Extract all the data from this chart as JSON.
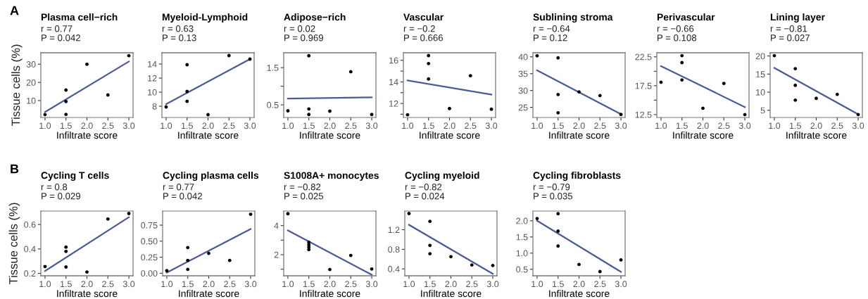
{
  "chart_data": [
    {
      "type": "scatter",
      "title": "Plasma cell−rich",
      "annotations": [
        "A",
        "r = 0.77",
        "P = 0.042"
      ],
      "xlabel": "Infiltrate score",
      "ylabel": "Tissue cells (%)",
      "xlim": [
        0.9,
        3.1
      ],
      "ylim": [
        0.7,
        36.3
      ],
      "xticks": [
        {
          "value": 1,
          "label": "1.0"
        },
        {
          "value": 1.5,
          "label": "1.5"
        },
        {
          "value": 2,
          "label": "2.0"
        },
        {
          "value": 2.5,
          "label": "2.5"
        },
        {
          "value": 3,
          "label": "3.0"
        }
      ],
      "yticks": [
        10,
        20,
        30
      ],
      "series": [
        {
          "marker": "circle",
          "color": "#000000",
          "x": [
            1,
            1.5,
            1.5,
            1.5,
            2,
            2.5,
            3
          ],
          "values": [
            2.3,
            15.8,
            9.5,
            2.4,
            30,
            13.1,
            34.7
          ]
        },
        {
          "type": "line",
          "marker": "none",
          "color": "#4a5a96",
          "x": [
            1,
            3
          ],
          "values": [
            3.7,
            31.5
          ]
        }
      ]
    },
    {
      "type": "scatter",
      "title": "Myeloid-Lymphoid",
      "annotations": [
        "r = 0.63",
        "P = 0.13"
      ],
      "xlabel": "Infiltrate score",
      "xlim": [
        0.9,
        3.1
      ],
      "ylim": [
        6.4,
        15.6
      ],
      "xticks": [
        {
          "value": 1,
          "label": "1.0"
        },
        {
          "value": 1.5,
          "label": "1.5"
        },
        {
          "value": 2,
          "label": "2.0"
        },
        {
          "value": 2.5,
          "label": "2.5"
        },
        {
          "value": 3,
          "label": "3.0"
        }
      ],
      "yticks": [
        8,
        10,
        12,
        14
      ],
      "series": [
        {
          "marker": "circle",
          "color": "#000000",
          "x": [
            1,
            1.5,
            1.5,
            1.5,
            2,
            2.5,
            3
          ],
          "values": [
            7.9,
            13.9,
            10.1,
            8.7,
            6.8,
            15.2,
            14.7
          ]
        },
        {
          "type": "line",
          "marker": "none",
          "color": "#4a5a96",
          "x": [
            1,
            3
          ],
          "values": [
            8.3,
            14.7
          ]
        }
      ]
    },
    {
      "type": "scatter",
      "title": "Adipose−rich",
      "annotations": [
        "r = 0.02",
        "P = 0.969"
      ],
      "xlabel": "Infiltrate score",
      "xlim": [
        0.9,
        3.1
      ],
      "ylim": [
        0.16,
        1.9
      ],
      "xticks": [
        {
          "value": 1,
          "label": "1.0"
        },
        {
          "value": 1.5,
          "label": "1.5"
        },
        {
          "value": 2,
          "label": "2.0"
        },
        {
          "value": 2.5,
          "label": "2.5"
        },
        {
          "value": 3,
          "label": "3.0"
        }
      ],
      "yticks": [
        {
          "value": 0.5,
          "label": "0.5"
        },
        {
          "value": 1.0,
          "label": null
        },
        {
          "value": 1.5,
          "label": "1.5"
        }
      ],
      "series": [
        {
          "marker": "circle",
          "color": "#000000",
          "x": [
            1,
            1.5,
            1.5,
            1.5,
            2,
            2.5,
            3
          ],
          "values": [
            0.34,
            1.82,
            0.39,
            0.24,
            0.33,
            1.39,
            0.24
          ]
        },
        {
          "type": "line",
          "marker": "none",
          "color": "#4a5a96",
          "x": [
            1,
            3
          ],
          "values": [
            0.67,
            0.7
          ]
        }
      ]
    },
    {
      "type": "scatter",
      "title": "Vascular",
      "annotations": [
        "r = −0.2",
        "P = 0.666"
      ],
      "xlabel": "Infiltrate score",
      "xlim": [
        0.9,
        3.1
      ],
      "ylim": [
        10.7,
        16.7
      ],
      "xticks": [
        {
          "value": 1,
          "label": "1.0"
        },
        {
          "value": 1.5,
          "label": "1.5"
        },
        {
          "value": 2,
          "label": "2.0"
        },
        {
          "value": 2.5,
          "label": "2.5"
        },
        {
          "value": 3,
          "label": "3.0"
        }
      ],
      "yticks": [
        {
          "value": 11,
          "label": null
        },
        {
          "value": 12,
          "label": "12"
        },
        {
          "value": 13,
          "label": null
        },
        {
          "value": 14,
          "label": "14"
        },
        {
          "value": 15,
          "label": null
        },
        {
          "value": 16,
          "label": "16"
        }
      ],
      "series": [
        {
          "marker": "circle",
          "color": "#000000",
          "x": [
            1,
            1.5,
            1.5,
            1.5,
            2,
            2.5,
            3
          ],
          "values": [
            10.95,
            16.44,
            15.7,
            14.27,
            11.53,
            14.57,
            11.47
          ]
        },
        {
          "type": "line",
          "marker": "none",
          "color": "#4a5a96",
          "x": [
            1,
            3
          ],
          "values": [
            14.13,
            12.82
          ]
        }
      ]
    },
    {
      "type": "scatter",
      "title": "Sublining stroma",
      "annotations": [
        "r = −0.64",
        "P = 0.12"
      ],
      "xlabel": "Infiltrate score",
      "xlim": [
        0.9,
        3.1
      ],
      "ylim": [
        22,
        41.2
      ],
      "xticks": [
        {
          "value": 1,
          "label": "1.0"
        },
        {
          "value": 1.5,
          "label": "1.5"
        },
        {
          "value": 2,
          "label": "2.0"
        },
        {
          "value": 2.5,
          "label": "2.5"
        },
        {
          "value": 3,
          "label": "3.0"
        }
      ],
      "yticks": [
        25,
        30,
        35,
        40
      ],
      "series": [
        {
          "marker": "circle",
          "color": "#000000",
          "x": [
            1,
            1.5,
            1.5,
            1.5,
            2,
            2.5,
            3
          ],
          "values": [
            40.3,
            39.7,
            28.8,
            23.4,
            29.6,
            28.5,
            22.9
          ]
        },
        {
          "type": "line",
          "marker": "none",
          "color": "#4a5a96",
          "x": [
            1,
            3
          ],
          "values": [
            36.0,
            23.0
          ]
        }
      ]
    },
    {
      "type": "scatter",
      "title": "Perivascular",
      "annotations": [
        "r = −0.66",
        "P = 0.108"
      ],
      "xlabel": "Infiltrate score",
      "xlim": [
        0.9,
        3.1
      ],
      "ylim": [
        12.0,
        23.2
      ],
      "xticks": [
        {
          "value": 1,
          "label": "1.0"
        },
        {
          "value": 1.5,
          "label": "1.5"
        },
        {
          "value": 2,
          "label": "2.0"
        },
        {
          "value": 2.5,
          "label": "2.5"
        },
        {
          "value": 3,
          "label": "3.0"
        }
      ],
      "yticks": [
        {
          "value": 12.5,
          "label": "12.5"
        },
        {
          "value": 15,
          "label": null
        },
        {
          "value": 17.5,
          "label": "17.5"
        },
        {
          "value": 20,
          "label": null
        },
        {
          "value": 22.5,
          "label": "22.5"
        }
      ],
      "series": [
        {
          "marker": "circle",
          "color": "#000000",
          "x": [
            1,
            1.5,
            1.5,
            1.5,
            2,
            2.5,
            3
          ],
          "values": [
            18.1,
            22.7,
            21.5,
            18.5,
            13.6,
            17.9,
            12.5
          ]
        },
        {
          "type": "line",
          "marker": "none",
          "color": "#4a5a96",
          "x": [
            1,
            3
          ],
          "values": [
            20.9,
            13.8
          ]
        }
      ]
    },
    {
      "type": "scatter",
      "title": "Lining layer",
      "annotations": [
        "r = −0.81",
        "P = 0.027"
      ],
      "xlabel": "Infiltrate score",
      "xlim": [
        0.9,
        3.1
      ],
      "ylim": [
        3.0,
        20.9
      ],
      "xticks": [
        {
          "value": 1,
          "label": "1.0"
        },
        {
          "value": 1.5,
          "label": "1.5"
        },
        {
          "value": 2,
          "label": "2.0"
        },
        {
          "value": 2.5,
          "label": "2.5"
        },
        {
          "value": 3,
          "label": "3.0"
        }
      ],
      "yticks": [
        5,
        10,
        15,
        20
      ],
      "series": [
        {
          "marker": "circle",
          "color": "#000000",
          "x": [
            1,
            1.5,
            1.5,
            1.5,
            2,
            2.5,
            3
          ],
          "values": [
            20.1,
            16.5,
            11.9,
            7.8,
            8.3,
            9.4,
            3.8
          ]
        },
        {
          "type": "line",
          "marker": "none",
          "color": "#4a5a96",
          "x": [
            1,
            3
          ],
          "values": [
            16.7,
            3.9
          ]
        }
      ]
    },
    {
      "type": "scatter",
      "title": "Cycling T cells",
      "annotations": [
        "B",
        "r = 0.8",
        "P = 0.029"
      ],
      "xlabel": "Infiltrate score",
      "ylabel": "Tissue cells (%)",
      "xlim": [
        0.9,
        3.1
      ],
      "ylim": [
        0.18,
        0.71
      ],
      "xticks": [
        {
          "value": 1,
          "label": "1.0"
        },
        {
          "value": 1.5,
          "label": "1.5"
        },
        {
          "value": 2,
          "label": "2.0"
        },
        {
          "value": 2.5,
          "label": "2.5"
        },
        {
          "value": 3,
          "label": "3.0"
        }
      ],
      "yticks": [
        0.2,
        0.4,
        0.6
      ],
      "series": [
        {
          "marker": "circle",
          "color": "#000000",
          "x": [
            1,
            1.5,
            1.5,
            1.5,
            2,
            2.5,
            3
          ],
          "values": [
            0.256,
            0.415,
            0.38,
            0.252,
            0.211,
            0.645,
            0.69
          ]
        },
        {
          "type": "line",
          "marker": "none",
          "color": "#4a5a96",
          "x": [
            1,
            3
          ],
          "values": [
            0.219,
            0.66
          ]
        }
      ]
    },
    {
      "type": "scatter",
      "title": "Cycling plasma cells",
      "annotations": [
        "r = 0.77",
        "P = 0.042"
      ],
      "xlabel": "Infiltrate score",
      "xlim": [
        0.9,
        3.1
      ],
      "ylim": [
        -0.04,
        0.97
      ],
      "xticks": [
        {
          "value": 1,
          "label": "1.0"
        },
        {
          "value": 1.5,
          "label": "1.5"
        },
        {
          "value": 2,
          "label": "2.0"
        },
        {
          "value": 2.5,
          "label": "2.5"
        },
        {
          "value": 3,
          "label": "3.0"
        }
      ],
      "yticks": [
        {
          "value": 0,
          "label": "0.00"
        },
        {
          "value": 0.25,
          "label": "0.25"
        },
        {
          "value": 0.5,
          "label": "0.50"
        },
        {
          "value": 0.75,
          "label": "0.75"
        }
      ],
      "series": [
        {
          "marker": "circle",
          "color": "#000000",
          "x": [
            1,
            1.5,
            1.5,
            1.5,
            2,
            2.5,
            3
          ],
          "values": [
            0.04,
            0.4,
            0.2,
            0.06,
            0.31,
            0.2,
            0.92
          ]
        },
        {
          "type": "line",
          "marker": "none",
          "color": "#4a5a96",
          "x": [
            1,
            3
          ],
          "values": [
            0.01,
            0.69
          ]
        }
      ]
    },
    {
      "type": "scatter",
      "title": "S1008A+ monocytes",
      "annotations": [
        "r = −0.82",
        "P = 0.025"
      ],
      "xlabel": "Infiltrate score",
      "xlim": [
        0.9,
        3.1
      ],
      "ylim": [
        0.55,
        5.0
      ],
      "xticks": [
        {
          "value": 1,
          "label": "1.0"
        },
        {
          "value": 1.5,
          "label": "1.5"
        },
        {
          "value": 2,
          "label": "2.0"
        },
        {
          "value": 2.5,
          "label": "2.5"
        },
        {
          "value": 3,
          "label": "3.0"
        }
      ],
      "yticks": [
        {
          "value": 1,
          "label": null
        },
        {
          "value": 2,
          "label": "2"
        },
        {
          "value": 3,
          "label": null
        },
        {
          "value": 4,
          "label": "4"
        }
      ],
      "series": [
        {
          "marker": "circle",
          "color": "#000000",
          "x": [
            1,
            1.5,
            1.5,
            1.5,
            1.5,
            2,
            2.5,
            3
          ],
          "values": [
            4.82,
            2.85,
            2.68,
            2.52,
            2.35,
            0.98,
            1.95,
            1.02
          ]
        },
        {
          "type": "line",
          "marker": "none",
          "color": "#4a5a96",
          "x": [
            1,
            3
          ],
          "values": [
            3.67,
            0.62
          ]
        }
      ]
    },
    {
      "type": "scatter",
      "title": "Cycling myeloid",
      "annotations": [
        "r = −0.82",
        "P = 0.024"
      ],
      "xlabel": "Infiltrate score",
      "xlim": [
        0.9,
        3.1
      ],
      "ylim": [
        0.26,
        1.58
      ],
      "xticks": [
        {
          "value": 1,
          "label": "1.0"
        },
        {
          "value": 1.5,
          "label": "1.5"
        },
        {
          "value": 2,
          "label": "2.0"
        },
        {
          "value": 2.5,
          "label": "2.5"
        },
        {
          "value": 3,
          "label": "3.0"
        }
      ],
      "yticks": [
        0.4,
        0.8,
        1.2
      ],
      "series": [
        {
          "marker": "circle",
          "color": "#000000",
          "x": [
            1,
            1.5,
            1.5,
            1.5,
            2,
            2.5,
            3
          ],
          "values": [
            1.53,
            1.37,
            0.88,
            0.71,
            0.65,
            0.48,
            0.47
          ]
        },
        {
          "type": "line",
          "marker": "none",
          "color": "#4a5a96",
          "x": [
            1,
            3
          ],
          "values": [
            1.3,
            0.3
          ]
        }
      ]
    },
    {
      "type": "scatter",
      "title": "Cycling fibroblasts",
      "annotations": [
        "r = −0.79",
        "P = 0.035"
      ],
      "xlabel": "Infiltrate score",
      "xlim": [
        0.9,
        3.1
      ],
      "ylim": [
        0.3,
        2.3
      ],
      "xticks": [
        {
          "value": 1,
          "label": "1.0"
        },
        {
          "value": 1.5,
          "label": "1.5"
        },
        {
          "value": 2,
          "label": "2.0"
        },
        {
          "value": 2.5,
          "label": "2.5"
        },
        {
          "value": 3,
          "label": "3.0"
        }
      ],
      "yticks": [
        0.5,
        {
          "value": 1,
          "label": "1.0"
        },
        1.5,
        {
          "value": 2,
          "label": "2.0"
        }
      ],
      "series": [
        {
          "marker": "circle",
          "color": "#000000",
          "x": [
            1,
            1.5,
            1.5,
            1.5,
            2,
            2.5,
            3
          ],
          "values": [
            2.07,
            2.22,
            1.68,
            1.22,
            0.65,
            0.43,
            0.79
          ]
        },
        {
          "type": "line",
          "marker": "none",
          "color": "#4a5a96",
          "x": [
            1,
            3
          ],
          "values": [
            2.0,
            0.42
          ]
        }
      ]
    }
  ]
}
